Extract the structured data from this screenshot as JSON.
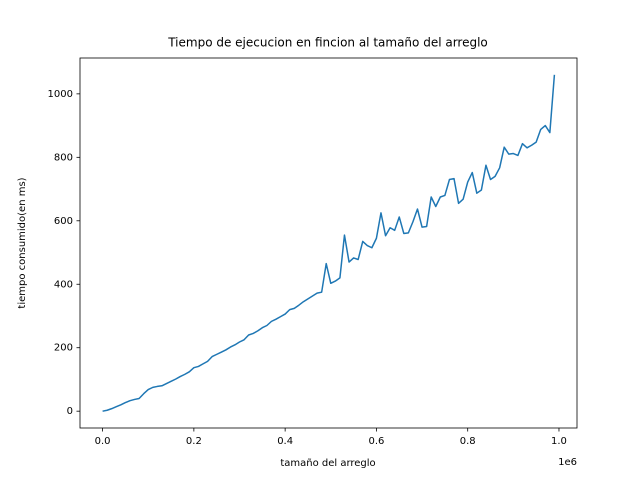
{
  "chart_data": {
    "type": "line",
    "title": "Tiempo de ejecucion en fincion al tamaño del arreglo",
    "x_label": "tamaño del arreglo",
    "y_label": "tiempo consumido(en ms)",
    "x_offset_text": "1e6",
    "x": [
      0,
      10000,
      20000,
      30000,
      40000,
      50000,
      60000,
      70000,
      80000,
      90000,
      100000,
      110000,
      120000,
      130000,
      140000,
      150000,
      160000,
      170000,
      180000,
      190000,
      200000,
      210000,
      220000,
      230000,
      240000,
      250000,
      260000,
      270000,
      280000,
      290000,
      300000,
      310000,
      320000,
      330000,
      340000,
      350000,
      360000,
      370000,
      380000,
      390000,
      400000,
      410000,
      420000,
      430000,
      440000,
      450000,
      460000,
      470000,
      480000,
      490000,
      500000,
      510000,
      520000,
      530000,
      540000,
      550000,
      560000,
      570000,
      580000,
      590000,
      600000,
      610000,
      620000,
      630000,
      640000,
      650000,
      660000,
      670000,
      680000,
      690000,
      700000,
      710000,
      720000,
      730000,
      740000,
      750000,
      760000,
      770000,
      780000,
      790000,
      800000,
      810000,
      820000,
      830000,
      840000,
      850000,
      860000,
      870000,
      880000,
      890000,
      900000,
      910000,
      920000,
      930000,
      940000,
      950000,
      960000,
      970000,
      980000,
      990000
    ],
    "series": [
      {
        "color": "#1f77b4",
        "values": [
          0,
          3,
          8,
          14,
          20,
          27,
          33,
          37,
          40,
          55,
          68,
          75,
          78,
          80,
          87,
          94,
          101,
          109,
          116,
          124,
          137,
          141,
          149,
          157,
          172,
          179,
          186,
          193,
          202,
          209,
          218,
          225,
          240,
          245,
          253,
          263,
          270,
          283,
          290,
          298,
          306,
          320,
          324,
          334,
          345,
          354,
          363,
          372,
          375,
          465,
          403,
          410,
          420,
          555,
          470,
          483,
          478,
          535,
          522,
          515,
          545,
          625,
          553,
          578,
          570,
          612,
          560,
          562,
          597,
          637,
          580,
          582,
          675,
          645,
          675,
          680,
          730,
          733,
          655,
          668,
          722,
          752,
          687,
          697,
          775,
          730,
          740,
          767,
          832,
          810,
          812,
          806,
          843,
          830,
          838,
          848,
          888,
          900,
          878,
          1060
        ]
      }
    ],
    "xlim": [
      -49500,
      1039500
    ],
    "ylim": [
      -53,
      1113
    ],
    "xticks": [
      {
        "value": 0,
        "label": "0.0"
      },
      {
        "value": 200000,
        "label": "0.2"
      },
      {
        "value": 400000,
        "label": "0.4"
      },
      {
        "value": 600000,
        "label": "0.6"
      },
      {
        "value": 800000,
        "label": "0.8"
      },
      {
        "value": 1000000,
        "label": "1.0"
      }
    ],
    "yticks": [
      0,
      200,
      400,
      600,
      800,
      1000
    ]
  }
}
